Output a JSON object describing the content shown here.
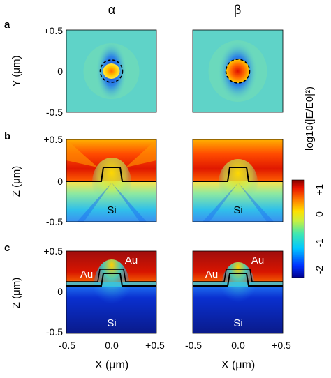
{
  "columns": {
    "alpha": "α",
    "beta": "β"
  },
  "row_labels": {
    "a": "a",
    "b": "b",
    "c": "c"
  },
  "y_axis": {
    "row_a": {
      "label": "Y (μm)",
      "ticks": [
        "+0.5",
        "0",
        "-0.5"
      ]
    },
    "row_b": {
      "label": "Z (μm)",
      "ticks": [
        "+0.5",
        "0",
        "-0.5"
      ]
    },
    "row_c": {
      "label": "Z (μm)",
      "ticks": [
        "+0.5",
        "0",
        "-0.5"
      ]
    }
  },
  "x_axis": {
    "label": "X (μm)",
    "ticks": [
      "-0.5",
      "0.0",
      "+0.5"
    ]
  },
  "materials": {
    "si": "Si",
    "au": "Au"
  },
  "colorbar": {
    "label": "log10(|E/E0|²)",
    "ticks": [
      "+1",
      "0",
      "-1",
      "-2"
    ],
    "range": [
      -2,
      1
    ],
    "colormap": [
      "#00008f",
      "#0030ff",
      "#00c8ff",
      "#40e8b0",
      "#c8f040",
      "#ffe000",
      "#ff7a00",
      "#e81000",
      "#800000"
    ]
  },
  "colors": {
    "background_field": "#5fd3c8",
    "deep_red": "#9a0a0a",
    "deep_blue": "#0a1a8a"
  }
}
